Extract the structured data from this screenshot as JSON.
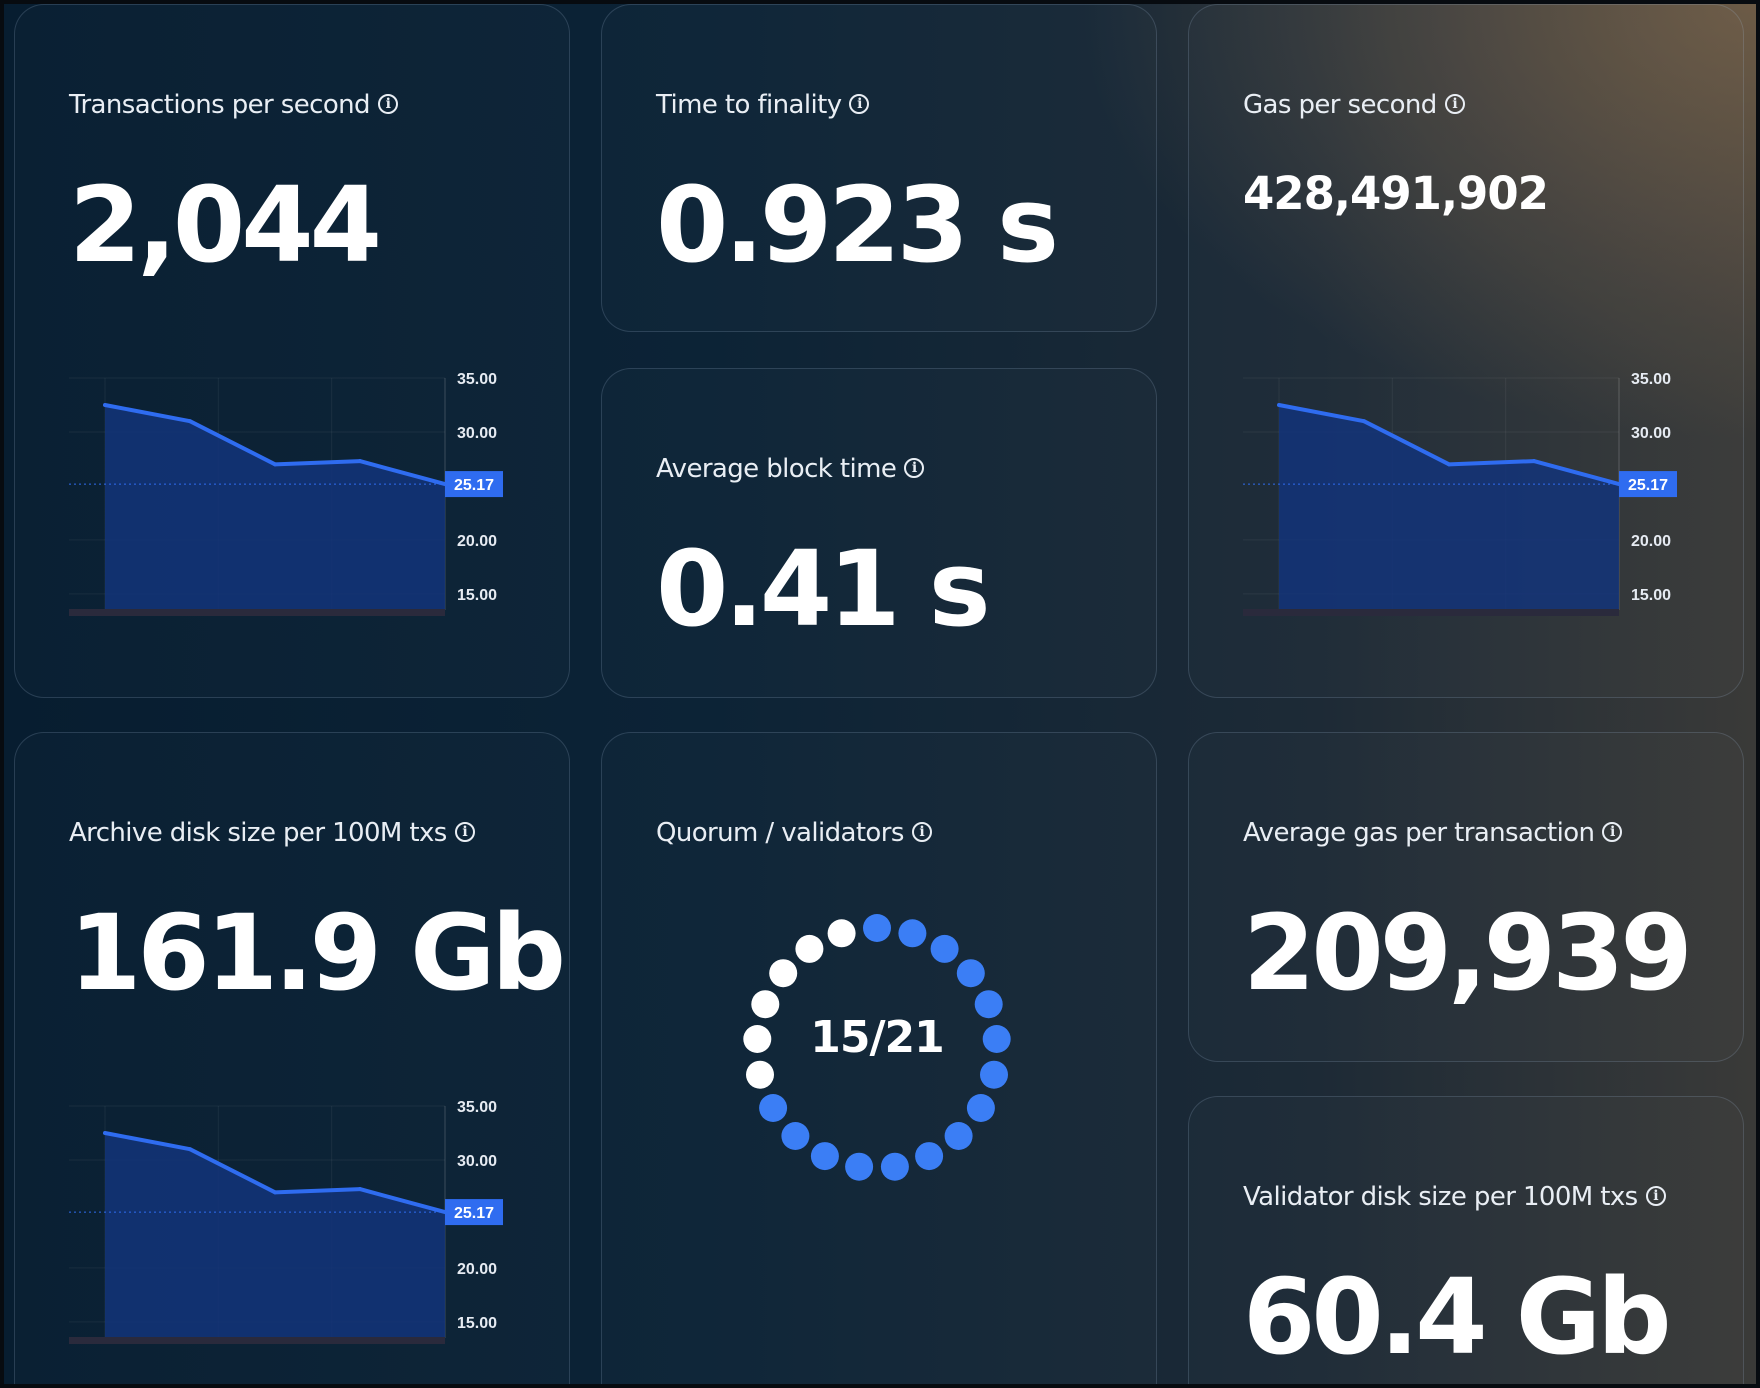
{
  "cards": {
    "tps": {
      "label": "Transactions per second",
      "value": "2,044"
    },
    "finality": {
      "label": "Time to finality",
      "value": "0.923 s"
    },
    "gas_per_second": {
      "label": "Gas per second",
      "value": "428,491,902"
    },
    "block_time": {
      "label": "Average block time",
      "value": "0.41 s"
    },
    "archive_disk": {
      "label": "Archive disk size per 100M txs",
      "value": "161.9 Gb"
    },
    "quorum": {
      "label": "Quorum / validators",
      "value": "15/21",
      "active": 15,
      "total": 21
    },
    "avg_gas_tx": {
      "label": "Average gas per transaction",
      "value": "209,939"
    },
    "validator_disk": {
      "label": "Validator disk size per 100M txs",
      "value": "60.4 Gb"
    }
  },
  "info_icon": "info-circle-icon",
  "colors": {
    "accent": "#2f6cf0",
    "line": "#2f6cf0",
    "area": "#13347a",
    "quorum_active": "#3b7ef5",
    "quorum_inactive": "#ffffff"
  },
  "chart_data": [
    {
      "type": "area",
      "x": [
        1,
        2,
        3,
        4,
        5
      ],
      "values": [
        32.5,
        31.0,
        27.0,
        27.3,
        25.17
      ],
      "ylim": [
        13.5,
        35
      ],
      "yticks": [
        "35.00",
        "30.00",
        "25.17",
        "20.00",
        "15.00"
      ],
      "last_value": "25.17"
    },
    {
      "type": "area",
      "x": [
        1,
        2,
        3,
        4,
        5
      ],
      "values": [
        32.5,
        31.0,
        27.0,
        27.3,
        25.17
      ],
      "ylim": [
        13.5,
        35
      ],
      "yticks": [
        "35.00",
        "30.00",
        "25.17",
        "20.00",
        "15.00"
      ],
      "last_value": "25.17"
    },
    {
      "type": "area",
      "x": [
        1,
        2,
        3,
        4,
        5
      ],
      "values": [
        32.5,
        31.0,
        27.0,
        27.3,
        25.17
      ],
      "ylim": [
        13.5,
        35
      ],
      "yticks": [
        "35.00",
        "30.00",
        "25.17",
        "20.00",
        "15.00"
      ],
      "last_value": "25.17"
    }
  ]
}
